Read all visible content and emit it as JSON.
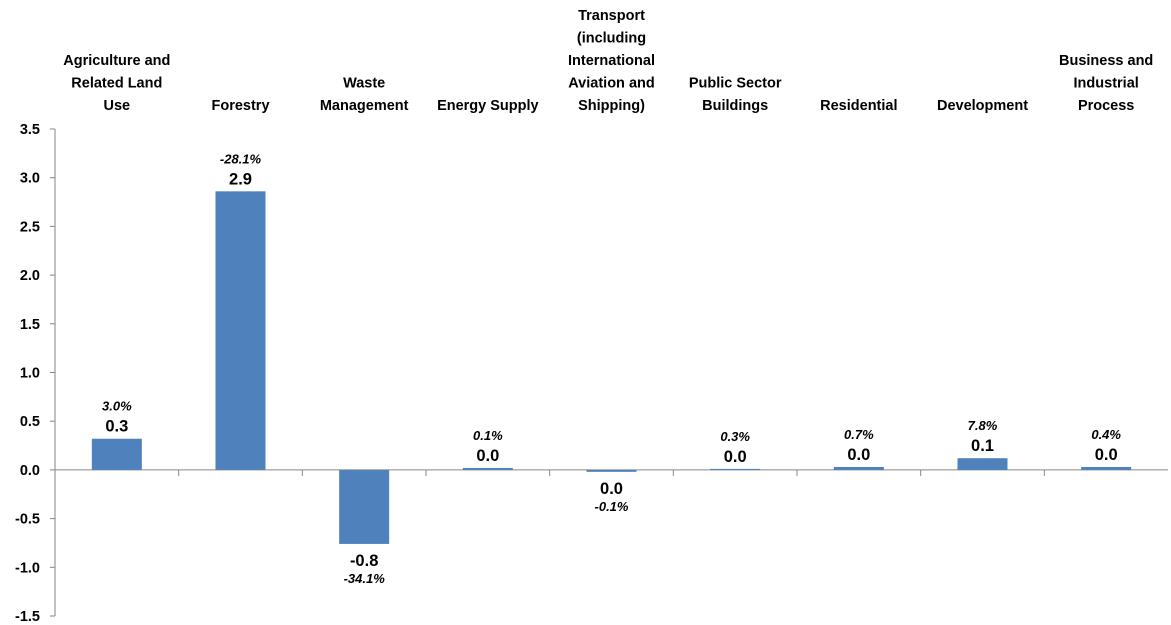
{
  "chart_data": {
    "type": "bar",
    "categories": [
      [
        "Agriculture and",
        "Related Land",
        "Use"
      ],
      [
        "Forestry"
      ],
      [
        "Waste",
        "Management"
      ],
      [
        "Energy Supply"
      ],
      [
        "Transport",
        "(including",
        "International",
        "Aviation and",
        "Shipping)"
      ],
      [
        "Public Sector",
        "Buildings"
      ],
      [
        "Residential"
      ],
      [
        "Development"
      ],
      [
        "Business and",
        "Industrial",
        "Process"
      ]
    ],
    "values": [
      0.32,
      2.86,
      -0.76,
      0.02,
      -0.02,
      0.0,
      0.03,
      0.12,
      0.03
    ],
    "value_labels": [
      "0.3",
      "2.9",
      "-0.8",
      "0.0",
      "0.0",
      "0.0",
      "0.0",
      "0.1",
      "0.0"
    ],
    "pct_labels": [
      "3.0%",
      "-28.1%",
      "-34.1%",
      "0.1%",
      "-0.1%",
      "0.3%",
      "0.7%",
      "7.8%",
      "0.4%"
    ],
    "yticks": [
      "3.5",
      "3.0",
      "2.5",
      "2.0",
      "1.5",
      "1.0",
      "0.5",
      "0.0",
      "-0.5",
      "-1.0",
      "-1.5"
    ],
    "ylim": [
      -1.5,
      3.5
    ],
    "bar_color": "#4F81BD",
    "axis_color": "#868686",
    "title": "",
    "xlabel": "",
    "ylabel": ""
  }
}
